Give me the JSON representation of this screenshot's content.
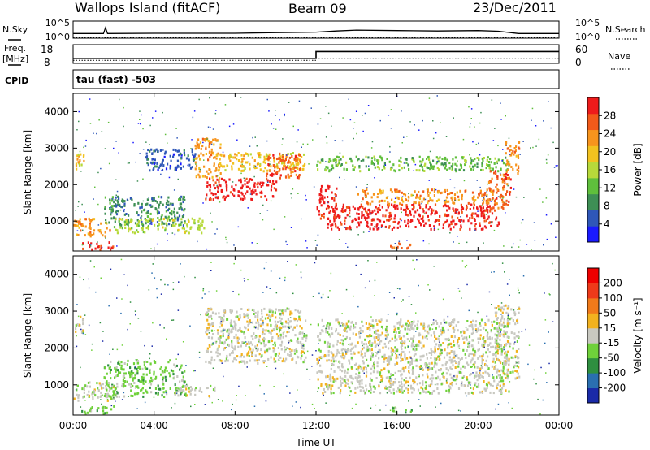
{
  "header": {
    "station": "Wallops Island (fitACF)",
    "beam": "Beam 09",
    "date": "23/Dec/2011"
  },
  "strips": {
    "nsky_label": "N.Sky",
    "nsearch_label": "N.Search",
    "noise_ticks_left": [
      "10^5",
      "10^0"
    ],
    "noise_ticks_right": [
      "10^5",
      "10^0"
    ],
    "freq_label": "Freq.",
    "freq_unit": "[MHz]",
    "freq_ticks": [
      "18",
      "8"
    ],
    "nave_label": "Nave",
    "nave_ticks": [
      "60",
      "0"
    ],
    "cpid_label": "CPID",
    "cpid_value": "tau (fast) -503"
  },
  "axes": {
    "xlabel": "Time UT",
    "ylabel": "Slant Range [km]",
    "x_ticks": [
      "00:00",
      "04:00",
      "08:00",
      "12:00",
      "16:00",
      "20:00",
      "00:00"
    ],
    "y_ticks": [
      "1000",
      "2000",
      "3000",
      "4000"
    ]
  },
  "colorbars": {
    "power": {
      "label": "Power [dB]",
      "ticks": [
        "4",
        "8",
        "12",
        "16",
        "20",
        "24",
        "28"
      ],
      "colors": [
        "#1a1aff",
        "#2f57b8",
        "#3e8f55",
        "#5fbf3c",
        "#b7d93a",
        "#f2c21f",
        "#f7941d",
        "#f25a1a",
        "#ee1b1b"
      ]
    },
    "velocity": {
      "label": "Velocity [m s⁻¹]",
      "ticks": [
        "200",
        "100",
        "50",
        "15",
        "-15",
        "-50",
        "-100",
        "-200"
      ],
      "colors": [
        "#1a2aa8",
        "#2a6fb0",
        "#2f8f40",
        "#6fd13a",
        "#c8c8c0",
        "#f2b21f",
        "#f07a1a",
        "#ee3a1a",
        "#ee0000"
      ]
    }
  },
  "chart_data": [
    {
      "type": "line",
      "title": "N.Sky / N.Search",
      "x_range_hours": [
        0,
        24
      ],
      "y_scale": "log",
      "ylim": [
        1,
        100000
      ],
      "series": [
        {
          "name": "N.Sky",
          "style": "solid",
          "x": [
            0,
            1.5,
            1.6,
            1.7,
            4,
            8,
            10,
            12,
            13,
            14,
            16,
            18,
            20,
            21,
            22,
            24
          ],
          "y": [
            20,
            20,
            2000,
            20,
            25,
            25,
            40,
            60,
            150,
            300,
            200,
            150,
            200,
            120,
            20,
            20
          ]
        },
        {
          "name": "N.Search",
          "style": "dotted",
          "x": [
            0,
            24
          ],
          "y": [
            1,
            1
          ]
        }
      ]
    },
    {
      "type": "line",
      "title": "Freq. / Nave",
      "x_range_hours": [
        0,
        24
      ],
      "series": [
        {
          "name": "Freq.",
          "unit": "MHz",
          "style": "solid",
          "ylim": [
            8,
            18
          ],
          "x": [
            0,
            12,
            12,
            24
          ],
          "y": [
            10.5,
            10.5,
            14.5,
            14.5
          ]
        },
        {
          "name": "Nave",
          "style": "dotted",
          "ylim": [
            0,
            60
          ],
          "x": [
            0,
            12,
            12,
            24
          ],
          "y": [
            8,
            8,
            15,
            15
          ]
        }
      ]
    },
    {
      "type": "heatmap",
      "title": "Power [dB]",
      "x_range_hours": [
        0,
        24
      ],
      "ylim": [
        180,
        4500
      ],
      "bands": [
        {
          "x0": 0.0,
          "x1": 0.5,
          "y0": 2400,
          "y1": 2900,
          "level": 5
        },
        {
          "x0": 0.0,
          "x1": 1.8,
          "y0": 600,
          "y1": 1100,
          "level": 6
        },
        {
          "x0": 0.3,
          "x1": 2.0,
          "y0": 250,
          "y1": 450,
          "level": 8
        },
        {
          "x0": 1.5,
          "x1": 5.5,
          "y0": 900,
          "y1": 1700,
          "level": 2
        },
        {
          "x0": 2.0,
          "x1": 6.5,
          "y0": 700,
          "y1": 1100,
          "level": 4
        },
        {
          "x0": 3.5,
          "x1": 6.0,
          "y0": 2400,
          "y1": 3000,
          "level": 1
        },
        {
          "x0": 6.0,
          "x1": 7.3,
          "y0": 2200,
          "y1": 3300,
          "level": 6
        },
        {
          "x0": 6.5,
          "x1": 10.0,
          "y0": 1600,
          "y1": 2200,
          "level": 8
        },
        {
          "x0": 7.0,
          "x1": 11.5,
          "y0": 2400,
          "y1": 2900,
          "level": 5
        },
        {
          "x0": 9.5,
          "x1": 11.2,
          "y0": 2100,
          "y1": 2900,
          "level": 7
        },
        {
          "x0": 12.0,
          "x1": 21.5,
          "y0": 2400,
          "y1": 2800,
          "level": 3
        },
        {
          "x0": 12.0,
          "x1": 13.0,
          "y0": 1100,
          "y1": 2000,
          "level": 8
        },
        {
          "x0": 12.5,
          "x1": 21.0,
          "y0": 800,
          "y1": 1500,
          "level": 8
        },
        {
          "x0": 14.0,
          "x1": 21.0,
          "y0": 1500,
          "y1": 1900,
          "level": 6
        },
        {
          "x0": 20.5,
          "x1": 21.6,
          "y0": 1300,
          "y1": 2400,
          "level": 7
        },
        {
          "x0": 21.3,
          "x1": 22.0,
          "y0": 2300,
          "y1": 3200,
          "level": 6
        },
        {
          "x0": 15.5,
          "x1": 16.8,
          "y0": 280,
          "y1": 420,
          "level": 7
        }
      ]
    },
    {
      "type": "heatmap",
      "title": "Velocity [m s⁻¹]",
      "x_range_hours": [
        0,
        24
      ],
      "ylim": [
        180,
        4500
      ],
      "bands": [
        {
          "x0": 0.0,
          "x1": 0.5,
          "y0": 2400,
          "y1": 2900,
          "level": 4
        },
        {
          "x0": 0.0,
          "x1": 2.0,
          "y0": 600,
          "y1": 1100,
          "level": 4
        },
        {
          "x0": 0.3,
          "x1": 2.0,
          "y0": 250,
          "y1": 450,
          "level": 3
        },
        {
          "x0": 1.5,
          "x1": 5.5,
          "y0": 700,
          "y1": 1700,
          "level": 3
        },
        {
          "x0": 5.0,
          "x1": 7.0,
          "y0": 700,
          "y1": 1000,
          "level": 4
        },
        {
          "x0": 6.5,
          "x1": 11.5,
          "y0": 1600,
          "y1": 3100,
          "level": 4
        },
        {
          "x0": 12.0,
          "x1": 21.5,
          "y0": 800,
          "y1": 2800,
          "level": 4
        },
        {
          "x0": 20.8,
          "x1": 22.0,
          "y0": 1200,
          "y1": 3200,
          "level": 4
        },
        {
          "x0": 15.5,
          "x1": 16.8,
          "y0": 280,
          "y1": 420,
          "level": 3
        }
      ]
    }
  ]
}
